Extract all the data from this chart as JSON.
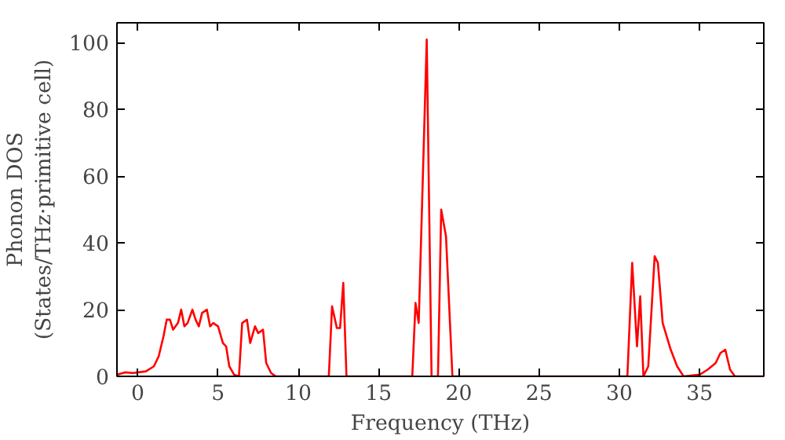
{
  "chart_data": {
    "type": "line",
    "xlabel": "Frequency (THz)",
    "ylabel": "Phonon DOS\n(States/THz·primitive cell)",
    "series": [
      {
        "color": "#ff0000",
        "x": [
          -1.3,
          -0.8,
          -0.3,
          0.5,
          1,
          1.3,
          1.6,
          1.8,
          2,
          2.2,
          2.5,
          2.7,
          2.9,
          3.1,
          3.4,
          3.6,
          3.8,
          4.0,
          4.3,
          4.5,
          4.7,
          5.0,
          5.3,
          5.5,
          5.7,
          6.0,
          6.3,
          6.5,
          6.8,
          7.0,
          7.3,
          7.5,
          7.8,
          8.0,
          8.3,
          8.6,
          11.9,
          12.1,
          12.4,
          12.6,
          12.8,
          13.0,
          17.1,
          17.3,
          17.5,
          18.0,
          18.3,
          18.7,
          18.9,
          19.2,
          19.6,
          30.5,
          30.8,
          31.1,
          31.3,
          31.5,
          31.8,
          32.2,
          32.4,
          32.7,
          33.2,
          33.6,
          34,
          35,
          35.5,
          36,
          36.3,
          36.6,
          36.9,
          37.2,
          39
        ],
        "values": [
          0.5,
          1.2,
          1,
          1.5,
          3,
          6,
          12,
          17,
          17,
          14,
          16,
          20,
          15,
          16,
          20,
          17,
          15,
          19,
          20,
          15,
          16,
          15,
          10,
          9,
          3,
          0.5,
          0,
          16,
          17,
          10,
          15,
          13,
          14,
          4,
          1,
          0,
          0,
          21,
          14.5,
          14.5,
          28,
          0,
          0,
          22,
          16,
          101,
          0,
          0,
          50,
          42,
          0,
          0,
          34,
          9,
          24,
          0,
          3,
          36,
          34,
          16,
          8,
          3,
          0,
          0.5,
          2,
          4,
          7,
          8,
          2,
          0,
          0
        ]
      }
    ],
    "xlim": [
      -1.3,
      39
    ],
    "ylim": [
      0,
      106
    ],
    "xticks": [
      0,
      5,
      10,
      15,
      20,
      25,
      30,
      35
    ],
    "yticks": [
      0,
      20,
      40,
      60,
      80,
      100
    ],
    "grid": false,
    "line_style": "solid",
    "marker": "none"
  }
}
